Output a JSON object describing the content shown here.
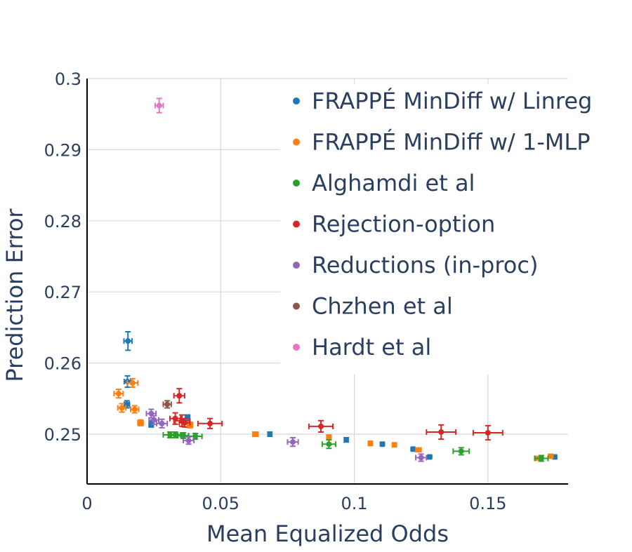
{
  "chart_data": {
    "type": "scatter",
    "xlabel": "Mean Equalized Odds",
    "ylabel": "Prediction Error",
    "xlim": [
      0,
      0.18
    ],
    "ylim": [
      0.243,
      0.3
    ],
    "x_ticks": [
      0,
      0.05,
      0.1,
      0.15
    ],
    "x_tick_labels": [
      "0",
      "0.05",
      "0.1",
      "0.15"
    ],
    "y_ticks": [
      0.25,
      0.26,
      0.27,
      0.28,
      0.29,
      0.3
    ],
    "y_tick_labels": [
      "0.25",
      "0.26",
      "0.27",
      "0.28",
      "0.29",
      "0.3"
    ],
    "grid": true,
    "legend_position": "top-right",
    "error_bars": true,
    "series": [
      {
        "name": "FRAPPÉ MinDiff w/ Linreg",
        "color": "#1f77b4",
        "points": [
          {
            "x": 0.0153,
            "y": 0.2631,
            "xerr": 0.0015,
            "yerr": 0.0013
          },
          {
            "x": 0.0151,
            "y": 0.2574,
            "xerr": 0.0012,
            "yerr": 0.0008
          },
          {
            "x": 0.0149,
            "y": 0.2542,
            "xerr": 0.001,
            "yerr": 0.0005
          },
          {
            "x": 0.024,
            "y": 0.2514,
            "xerr": 0.0008,
            "yerr": 0.0004
          },
          {
            "x": 0.0376,
            "y": 0.2524,
            "xerr": 0.0008,
            "yerr": 0.0003
          },
          {
            "x": 0.0684,
            "y": 0.25,
            "xerr": 0.0006,
            "yerr": 0.0003
          },
          {
            "x": 0.097,
            "y": 0.2492,
            "xerr": 0.0006,
            "yerr": 0.0003
          },
          {
            "x": 0.1105,
            "y": 0.2486,
            "xerr": 0.0006,
            "yerr": 0.0002
          },
          {
            "x": 0.122,
            "y": 0.2479,
            "xerr": 0.0006,
            "yerr": 0.0002
          },
          {
            "x": 0.1282,
            "y": 0.2468,
            "xerr": 0.0006,
            "yerr": 0.0002
          },
          {
            "x": 0.175,
            "y": 0.2468,
            "xerr": 0.0006,
            "yerr": 0.0002
          }
        ]
      },
      {
        "name": "FRAPPÉ MinDiff w/ 1-MLP",
        "color": "#ff7f0e",
        "points": [
          {
            "x": 0.017,
            "y": 0.2572,
            "xerr": 0.002,
            "yerr": 0.0006
          },
          {
            "x": 0.0118,
            "y": 0.2557,
            "xerr": 0.0017,
            "yerr": 0.0006
          },
          {
            "x": 0.013,
            "y": 0.2537,
            "xerr": 0.0015,
            "yerr": 0.0006
          },
          {
            "x": 0.0178,
            "y": 0.2535,
            "xerr": 0.0015,
            "yerr": 0.0005
          },
          {
            "x": 0.02,
            "y": 0.2516,
            "xerr": 0.001,
            "yerr": 0.0004
          },
          {
            "x": 0.0385,
            "y": 0.2513,
            "xerr": 0.001,
            "yerr": 0.0004
          },
          {
            "x": 0.063,
            "y": 0.25,
            "xerr": 0.001,
            "yerr": 0.0003
          },
          {
            "x": 0.0905,
            "y": 0.2496,
            "xerr": 0.0008,
            "yerr": 0.0003
          },
          {
            "x": 0.106,
            "y": 0.2487,
            "xerr": 0.0007,
            "yerr": 0.0003
          },
          {
            "x": 0.115,
            "y": 0.2485,
            "xerr": 0.0007,
            "yerr": 0.0002
          },
          {
            "x": 0.124,
            "y": 0.2478,
            "xerr": 0.001,
            "yerr": 0.0002
          },
          {
            "x": 0.169,
            "y": 0.2466,
            "xerr": 0.001,
            "yerr": 0.0002
          },
          {
            "x": 0.1735,
            "y": 0.2469,
            "xerr": 0.0008,
            "yerr": 0.0002
          }
        ]
      },
      {
        "name": "Alghamdi et al",
        "color": "#2ca02c",
        "points": [
          {
            "x": 0.031,
            "y": 0.2499,
            "xerr": 0.0025,
            "yerr": 0.0004
          },
          {
            "x": 0.033,
            "y": 0.2499,
            "xerr": 0.002,
            "yerr": 0.0004
          },
          {
            "x": 0.036,
            "y": 0.2498,
            "xerr": 0.002,
            "yerr": 0.0004
          },
          {
            "x": 0.0405,
            "y": 0.2497,
            "xerr": 0.0025,
            "yerr": 0.0004
          },
          {
            "x": 0.0905,
            "y": 0.2486,
            "xerr": 0.0025,
            "yerr": 0.0006
          },
          {
            "x": 0.14,
            "y": 0.2476,
            "xerr": 0.003,
            "yerr": 0.0005
          },
          {
            "x": 0.17,
            "y": 0.2466,
            "xerr": 0.0025,
            "yerr": 0.0004
          }
        ]
      },
      {
        "name": "Rejection-option",
        "color": "#d62728",
        "points": [
          {
            "x": 0.0345,
            "y": 0.2554,
            "xerr": 0.002,
            "yerr": 0.001
          },
          {
            "x": 0.033,
            "y": 0.2522,
            "xerr": 0.002,
            "yerr": 0.0008
          },
          {
            "x": 0.0355,
            "y": 0.2519,
            "xerr": 0.003,
            "yerr": 0.0008
          },
          {
            "x": 0.0365,
            "y": 0.2516,
            "xerr": 0.002,
            "yerr": 0.0006
          },
          {
            "x": 0.046,
            "y": 0.2515,
            "xerr": 0.0045,
            "yerr": 0.0007
          },
          {
            "x": 0.0875,
            "y": 0.2511,
            "xerr": 0.0045,
            "yerr": 0.0008
          },
          {
            "x": 0.1325,
            "y": 0.2503,
            "xerr": 0.0055,
            "yerr": 0.001
          },
          {
            "x": 0.15,
            "y": 0.2502,
            "xerr": 0.0055,
            "yerr": 0.001
          }
        ]
      },
      {
        "name": "Reductions (in-proc)",
        "color": "#9467bd",
        "points": [
          {
            "x": 0.024,
            "y": 0.2529,
            "xerr": 0.0018,
            "yerr": 0.0006
          },
          {
            "x": 0.025,
            "y": 0.252,
            "xerr": 0.0018,
            "yerr": 0.0006
          },
          {
            "x": 0.028,
            "y": 0.2515,
            "xerr": 0.002,
            "yerr": 0.0006
          },
          {
            "x": 0.038,
            "y": 0.2491,
            "xerr": 0.002,
            "yerr": 0.0005
          },
          {
            "x": 0.077,
            "y": 0.2489,
            "xerr": 0.002,
            "yerr": 0.0006
          },
          {
            "x": 0.125,
            "y": 0.2467,
            "xerr": 0.002,
            "yerr": 0.0005
          }
        ]
      },
      {
        "name": "Chzhen et al",
        "color": "#8c564b",
        "points": [
          {
            "x": 0.03,
            "y": 0.2542,
            "xerr": 0.0015,
            "yerr": 0.0005
          }
        ]
      },
      {
        "name": "Hardt et al",
        "color": "#e377c2",
        "points": [
          {
            "x": 0.027,
            "y": 0.2962,
            "xerr": 0.0015,
            "yerr": 0.001
          }
        ]
      }
    ]
  }
}
